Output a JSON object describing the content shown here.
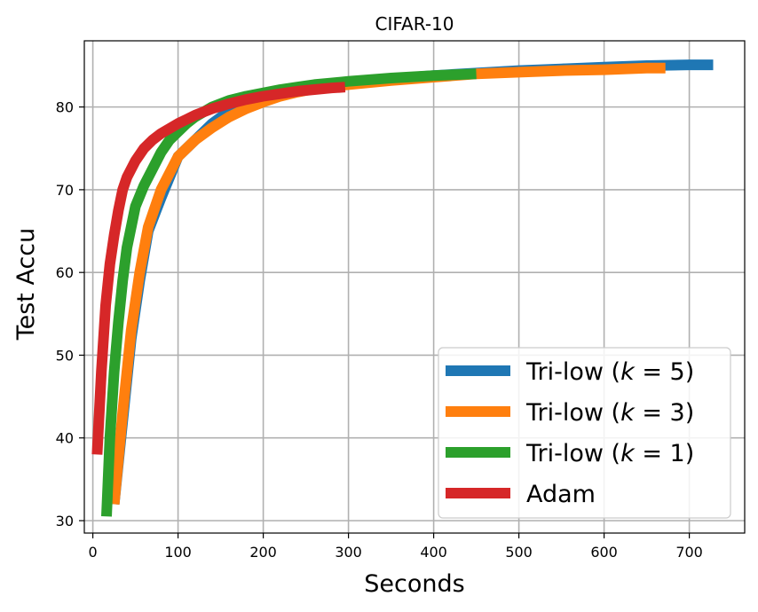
{
  "chart_data": {
    "type": "line",
    "title": "CIFAR-10",
    "xlabel": "Seconds",
    "ylabel": "Test Accu",
    "xlim": [
      -10,
      765
    ],
    "ylim": [
      28.5,
      88.0
    ],
    "xticks": [
      0,
      100,
      200,
      300,
      400,
      500,
      600,
      700
    ],
    "yticks": [
      30,
      40,
      50,
      60,
      70,
      80
    ],
    "grid": true,
    "legend_position": "bottom-right",
    "series": [
      {
        "name": "Tri-low (k = 5)",
        "legend_prefix": "Tri-low (",
        "legend_var": "k",
        "legend_suffix": " = 5)",
        "color": "#1f77b4",
        "x": [
          25,
          35,
          45,
          55,
          65,
          80,
          100,
          120,
          140,
          160,
          180,
          200,
          220,
          240,
          260,
          280,
          300,
          350,
          400,
          450,
          500,
          550,
          600,
          650,
          700,
          728
        ],
        "y": [
          32,
          42,
          52,
          59,
          65,
          69,
          74,
          76,
          78,
          79.5,
          80.5,
          81.2,
          81.6,
          82,
          82.3,
          82.5,
          82.8,
          83.4,
          83.8,
          84.1,
          84.4,
          84.6,
          84.8,
          85,
          85.1,
          85.1
        ]
      },
      {
        "name": "Tri-low (k = 3)",
        "legend_prefix": "Tri-low (",
        "legend_var": "k",
        "legend_suffix": " = 3)",
        "color": "#ff7f0e",
        "x": [
          25,
          35,
          45,
          55,
          65,
          80,
          100,
          120,
          140,
          160,
          180,
          200,
          220,
          240,
          260,
          280,
          300,
          350,
          400,
          450,
          500,
          550,
          600,
          650,
          672
        ],
        "y": [
          32,
          43,
          53,
          60,
          65.5,
          70,
          74,
          76,
          77.5,
          78.8,
          79.8,
          80.6,
          81.3,
          81.8,
          82.2,
          82.5,
          82.7,
          83.2,
          83.6,
          84,
          84.2,
          84.4,
          84.5,
          84.7,
          84.7
        ]
      },
      {
        "name": "Tri-low (k = 1)",
        "legend_prefix": "Tri-low (",
        "legend_var": "k",
        "legend_suffix": " = 1)",
        "color": "#2ca02c",
        "x": [
          16,
          20,
          25,
          30,
          35,
          40,
          45,
          50,
          60,
          70,
          80,
          90,
          100,
          110,
          120,
          140,
          160,
          180,
          200,
          220,
          240,
          260,
          280,
          300,
          350,
          400,
          450
        ],
        "y": [
          30.5,
          40,
          48,
          54,
          59,
          63,
          65.5,
          68,
          70.5,
          72.5,
          74.5,
          76,
          77,
          78,
          78.8,
          80,
          80.8,
          81.3,
          81.7,
          82.1,
          82.4,
          82.7,
          82.9,
          83.1,
          83.5,
          83.8,
          84
        ]
      },
      {
        "name": "Adam",
        "legend_prefix": "Adam",
        "legend_var": "",
        "legend_suffix": "",
        "color": "#d62728",
        "x": [
          5,
          10,
          15,
          20,
          25,
          30,
          35,
          40,
          50,
          60,
          70,
          80,
          90,
          100,
          110,
          120,
          140,
          160,
          180,
          200,
          220,
          240,
          260,
          280,
          296
        ],
        "y": [
          38,
          48,
          56,
          61,
          64.5,
          67.5,
          70,
          71.5,
          73.5,
          75,
          76,
          76.8,
          77.4,
          78,
          78.5,
          79,
          79.8,
          80.4,
          80.9,
          81.3,
          81.6,
          81.9,
          82.1,
          82.3,
          82.4
        ]
      }
    ]
  }
}
